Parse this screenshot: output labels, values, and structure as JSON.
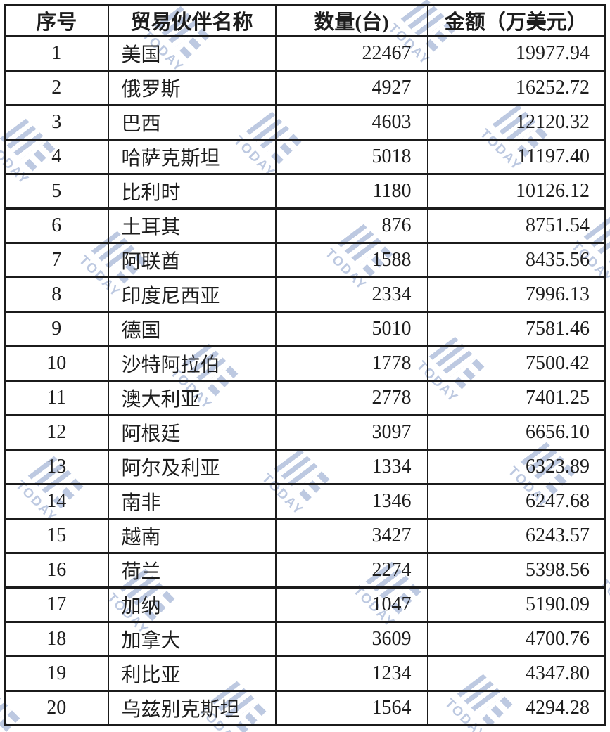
{
  "watermark": {
    "text": "TODAY",
    "color": "#b2c0dc"
  },
  "colors": {
    "border": "#1b1b1b",
    "text": "#1d1d1d",
    "background": "#ffffff"
  },
  "table": {
    "headers": [
      "序号",
      "贸易伙伴名称",
      "数量(台)",
      "金额（万美元）"
    ],
    "rows": [
      {
        "no": "1",
        "partner": "美国",
        "qty": "22467",
        "amount": "19977.94"
      },
      {
        "no": "2",
        "partner": "俄罗斯",
        "qty": "4927",
        "amount": "16252.72"
      },
      {
        "no": "3",
        "partner": "巴西",
        "qty": "4603",
        "amount": "12120.32"
      },
      {
        "no": "4",
        "partner": "哈萨克斯坦",
        "qty": "5018",
        "amount": "11197.40"
      },
      {
        "no": "5",
        "partner": "比利时",
        "qty": "1180",
        "amount": "10126.12"
      },
      {
        "no": "6",
        "partner": "土耳其",
        "qty": "876",
        "amount": "8751.54"
      },
      {
        "no": "7",
        "partner": "阿联酋",
        "qty": "1588",
        "amount": "8435.56"
      },
      {
        "no": "8",
        "partner": "印度尼西亚",
        "qty": "2334",
        "amount": "7996.13"
      },
      {
        "no": "9",
        "partner": "德国",
        "qty": "5010",
        "amount": "7581.46"
      },
      {
        "no": "10",
        "partner": "沙特阿拉伯",
        "qty": "1778",
        "amount": "7500.42"
      },
      {
        "no": "11",
        "partner": "澳大利亚",
        "qty": "2778",
        "amount": "7401.25"
      },
      {
        "no": "12",
        "partner": "阿根廷",
        "qty": "3097",
        "amount": "6656.10"
      },
      {
        "no": "13",
        "partner": "阿尔及利亚",
        "qty": "1334",
        "amount": "6323.89"
      },
      {
        "no": "14",
        "partner": "南非",
        "qty": "1346",
        "amount": "6247.68"
      },
      {
        "no": "15",
        "partner": "越南",
        "qty": "3427",
        "amount": "6243.57"
      },
      {
        "no": "16",
        "partner": "荷兰",
        "qty": "2274",
        "amount": "5398.56"
      },
      {
        "no": "17",
        "partner": "加纳",
        "qty": "1047",
        "amount": "5190.09"
      },
      {
        "no": "18",
        "partner": "加拿大",
        "qty": "3609",
        "amount": "4700.76"
      },
      {
        "no": "19",
        "partner": "利比亚",
        "qty": "1234",
        "amount": "4347.80"
      },
      {
        "no": "20",
        "partner": "乌兹别克斯坦",
        "qty": "1564",
        "amount": "4294.28"
      }
    ]
  }
}
